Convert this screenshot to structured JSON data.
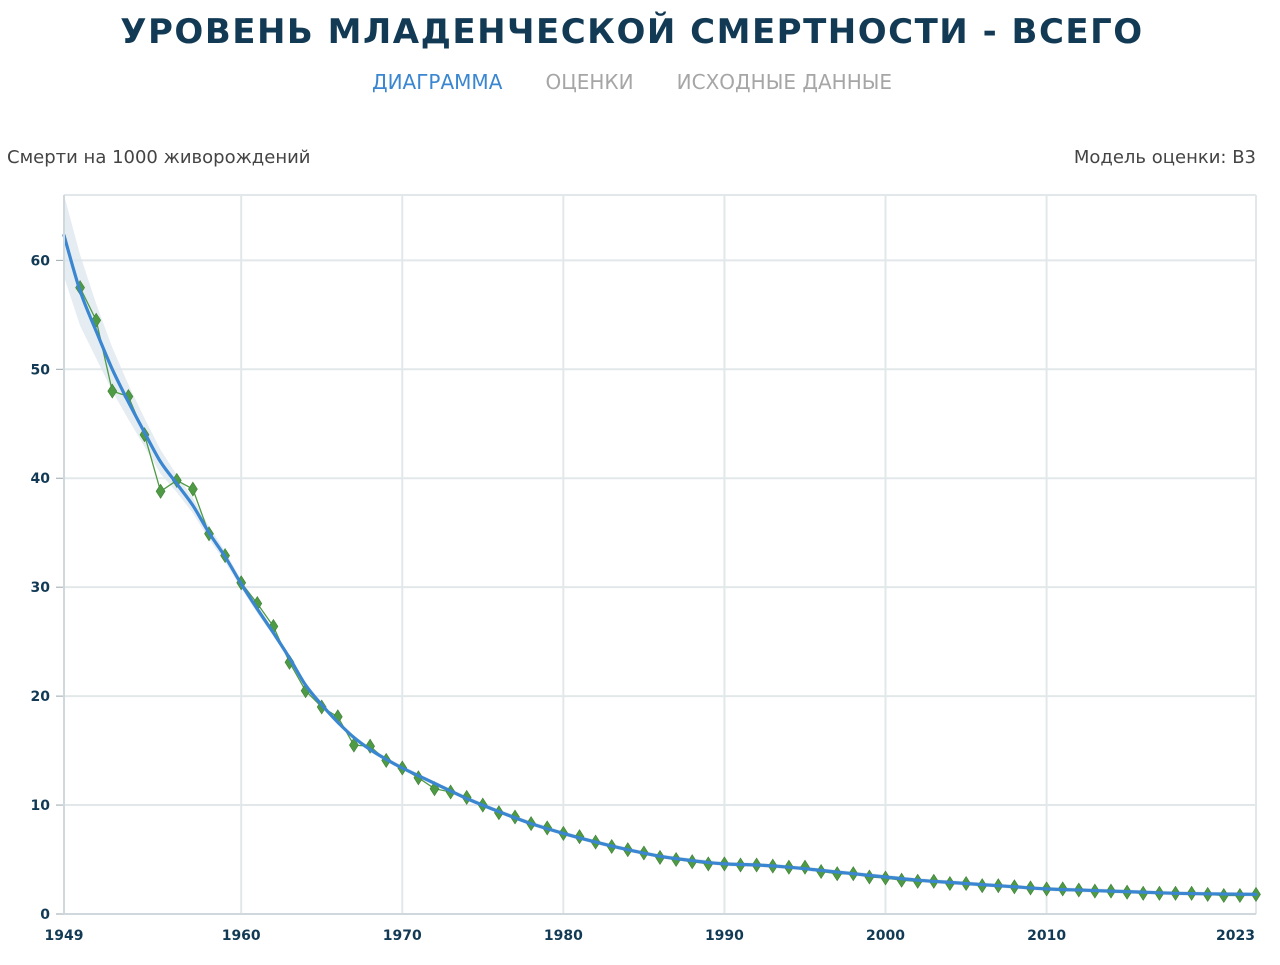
{
  "header": {
    "title": "УРОВЕНЬ МЛАДЕНЧЕСКОЙ СМЕРТНОСТИ - ВСЕГО",
    "tabs": [
      {
        "label": "ДИАГРАММА",
        "active": true
      },
      {
        "label": "ОЦЕНКИ",
        "active": false
      },
      {
        "label": "ИСХОДНЫЕ ДАННЫЕ",
        "active": false
      }
    ]
  },
  "unit_label": "Смерти на 1000 живорождений",
  "model_label": "Модель оценки: B3",
  "colors": {
    "title": "#123a55",
    "tab_active": "#3a86d1",
    "tab_inactive": "#a6a6a6",
    "estimate_line": "#3a86d1",
    "data_series": "#4f9a45",
    "uncertainty_band": "#dce6ee",
    "grid": "#e2e8ea"
  },
  "chart_data": {
    "type": "line",
    "xlim": [
      1949,
      2023
    ],
    "ylim": [
      0,
      66
    ],
    "x_ticks": [
      1949,
      1960,
      1970,
      1980,
      1990,
      2000,
      2010,
      2023
    ],
    "y_ticks": [
      0,
      10,
      20,
      30,
      40,
      50,
      60
    ],
    "grid": true,
    "legend": "none",
    "series": [
      {
        "type": "line",
        "role": "estimate",
        "x": [
          1949,
          1950,
          1951,
          1952,
          1953,
          1954,
          1955,
          1956,
          1957,
          1958,
          1959,
          1960,
          1961,
          1962,
          1963,
          1964,
          1965,
          1966,
          1967,
          1968,
          1969,
          1970,
          1972,
          1974,
          1976,
          1978,
          1980,
          1982,
          1984,
          1986,
          1988,
          1990,
          1992,
          1994,
          1996,
          1998,
          2000,
          2002,
          2004,
          2006,
          2008,
          2010,
          2012,
          2014,
          2016,
          2018,
          2020,
          2023
        ],
        "y": [
          62.3,
          57.2,
          53.5,
          50.0,
          47.0,
          44.2,
          41.5,
          39.5,
          37.5,
          35.0,
          32.8,
          30.3,
          28.0,
          25.8,
          23.5,
          21.0,
          19.2,
          17.6,
          16.2,
          15.1,
          14.2,
          13.4,
          12.0,
          10.6,
          9.4,
          8.3,
          7.4,
          6.6,
          5.9,
          5.3,
          4.9,
          4.6,
          4.5,
          4.3,
          4.0,
          3.7,
          3.4,
          3.1,
          2.9,
          2.7,
          2.5,
          2.3,
          2.2,
          2.1,
          2.0,
          1.9,
          1.85,
          1.8
        ],
        "upper": [
          66.0,
          60.5,
          56.0,
          52.0,
          48.6,
          45.5,
          42.6,
          40.3,
          38.2,
          35.6,
          33.3,
          30.7,
          28.4,
          26.1,
          23.8,
          21.3,
          19.4,
          17.8,
          16.4,
          15.3,
          14.4,
          13.6,
          12.2,
          10.8,
          9.6,
          8.5,
          7.6,
          6.8,
          6.1,
          5.5,
          5.1,
          4.8,
          4.7,
          4.5,
          4.2,
          3.9,
          3.6,
          3.3,
          3.1,
          2.9,
          2.7,
          2.5,
          2.4,
          2.3,
          2.2,
          2.1,
          2.05,
          2.0
        ],
        "lower": [
          58.5,
          54.0,
          51.0,
          48.0,
          45.4,
          42.9,
          40.4,
          38.7,
          36.8,
          34.4,
          32.3,
          29.9,
          27.6,
          25.5,
          23.2,
          20.7,
          19.0,
          17.4,
          16.0,
          14.9,
          14.0,
          13.2,
          11.8,
          10.4,
          9.2,
          8.1,
          7.2,
          6.4,
          5.7,
          5.1,
          4.7,
          4.4,
          4.3,
          4.1,
          3.8,
          3.5,
          3.2,
          2.9,
          2.7,
          2.5,
          2.3,
          2.1,
          2.0,
          1.9,
          1.8,
          1.7,
          1.65,
          1.6
        ]
      },
      {
        "type": "line+markers",
        "role": "data",
        "x": [
          1950,
          1951,
          1952,
          1953,
          1954,
          1955,
          1956,
          1957,
          1958,
          1959,
          1960,
          1961,
          1962,
          1963,
          1964,
          1965,
          1966,
          1967,
          1968,
          1969,
          1970,
          1971,
          1972,
          1973,
          1974,
          1975,
          1976,
          1977,
          1978,
          1979,
          1980,
          1981,
          1982,
          1983,
          1984,
          1985,
          1986,
          1987,
          1988,
          1989,
          1990,
          1991,
          1992,
          1993,
          1994,
          1995,
          1996,
          1997,
          1998,
          1999,
          2000,
          2001,
          2002,
          2003,
          2004,
          2005,
          2006,
          2007,
          2008,
          2009,
          2010,
          2011,
          2012,
          2013,
          2014,
          2015,
          2016,
          2017,
          2018,
          2019,
          2020,
          2021,
          2022,
          2023
        ],
        "y": [
          57.5,
          54.5,
          48.0,
          47.5,
          44.0,
          38.8,
          39.8,
          39.0,
          34.9,
          32.9,
          30.4,
          28.5,
          26.4,
          23.1,
          20.5,
          19.0,
          18.1,
          15.5,
          15.4,
          14.1,
          13.4,
          12.5,
          11.5,
          11.2,
          10.7,
          10.0,
          9.3,
          8.9,
          8.3,
          7.9,
          7.4,
          7.1,
          6.6,
          6.2,
          5.9,
          5.6,
          5.2,
          5.0,
          4.8,
          4.6,
          4.6,
          4.5,
          4.5,
          4.4,
          4.3,
          4.3,
          3.9,
          3.7,
          3.7,
          3.4,
          3.3,
          3.1,
          3.0,
          3.0,
          2.8,
          2.8,
          2.6,
          2.6,
          2.5,
          2.4,
          2.3,
          2.3,
          2.2,
          2.1,
          2.1,
          2.0,
          1.9,
          1.9,
          1.9,
          1.9,
          1.8,
          1.7,
          1.7,
          1.8
        ]
      }
    ]
  }
}
